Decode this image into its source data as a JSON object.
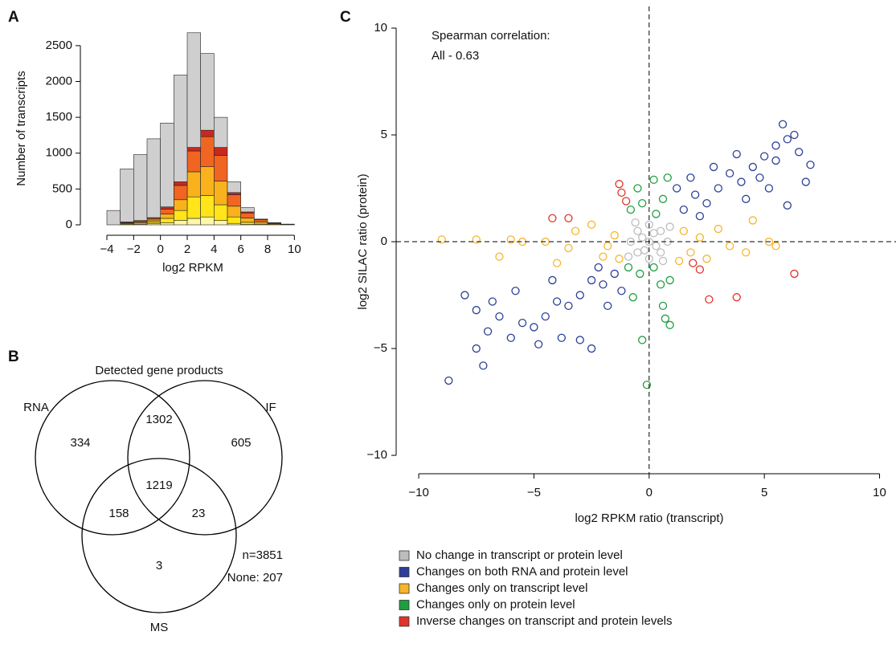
{
  "chart_data": [
    {
      "type": "histogram",
      "panel": "A",
      "xlabel": "log2 RPKM",
      "ylabel": "Number of transcripts",
      "bins": [
        -4,
        -3,
        -2,
        -1,
        0,
        1,
        2,
        3,
        4,
        5,
        6,
        7,
        8,
        9,
        10
      ],
      "series": [
        {
          "color": "#fff6a8",
          "values": [
            0,
            5,
            10,
            15,
            30,
            60,
            90,
            110,
            60,
            20,
            5,
            0,
            0,
            0
          ]
        },
        {
          "color": "#ffe51a",
          "values": [
            0,
            10,
            15,
            25,
            60,
            140,
            300,
            300,
            220,
            90,
            30,
            10,
            5,
            0
          ]
        },
        {
          "color": "#f9b21c",
          "values": [
            0,
            10,
            15,
            25,
            60,
            150,
            350,
            400,
            330,
            150,
            60,
            30,
            10,
            5
          ]
        },
        {
          "color": "#f06522",
          "values": [
            0,
            10,
            15,
            25,
            70,
            200,
            290,
            420,
            360,
            160,
            70,
            30,
            10,
            5
          ]
        },
        {
          "color": "#c8281e",
          "values": [
            0,
            5,
            5,
            10,
            30,
            50,
            50,
            90,
            110,
            30,
            15,
            10,
            5,
            0
          ]
        },
        {
          "color": "#cfcfcf",
          "values": [
            200,
            740,
            920,
            1100,
            1170,
            1490,
            1600,
            1070,
            420,
            150,
            60,
            0,
            0,
            0
          ]
        }
      ],
      "xlim": [
        -5.2,
        11
      ],
      "xticks": [
        {
          "value": -4,
          "label": "−4"
        },
        {
          "value": -2,
          "label": "−2"
        },
        0,
        2,
        4,
        6,
        8,
        10
      ],
      "ylim": [
        0,
        2700
      ],
      "yticks": [
        0,
        500,
        1000,
        1500,
        2000,
        2500
      ]
    },
    {
      "type": "venn",
      "panel": "B",
      "title": "Detected gene products",
      "sets": [
        "RNA",
        "IF",
        "MS"
      ],
      "regions": {
        "RNA": "334",
        "IF": "605",
        "MS": "3",
        "RNA_IF": "1302",
        "RNA_MS": "158",
        "IF_MS": "23",
        "all": "1219"
      },
      "notes": [
        "n=3851",
        "None: 207"
      ]
    },
    {
      "type": "scatter",
      "panel": "C",
      "xlabel": "log2 RPKM ratio (transcript)",
      "ylabel": "log2 SILAC ratio (protein)",
      "annotation": [
        "Spearman correlation:",
        "All - 0.63"
      ],
      "hline": 0,
      "vline": 0,
      "xlim": [
        -10.7,
        10.7
      ],
      "xticks": [
        {
          "value": -10,
          "label": "−10"
        },
        {
          "value": -5,
          "label": "−5"
        },
        0,
        5,
        10
      ],
      "ylim": [
        -11.2,
        11
      ],
      "yticks": [
        {
          "value": -10,
          "label": "−10"
        },
        {
          "value": -5,
          "label": "−5"
        },
        0,
        5,
        10
      ],
      "series": [
        {
          "name": "No change in transcript or protein level",
          "color": "#bdbdbd",
          "x": [
            0,
            0.5,
            -0.5,
            0.5,
            -0.5,
            0.8,
            -0.8,
            0,
            0,
            0.3,
            -0.3,
            0.9,
            -0.9,
            -0.6,
            0.6,
            0.2,
            -0.2
          ],
          "values": [
            0,
            0.5,
            0.5,
            -0.5,
            -0.5,
            0,
            0,
            0.8,
            -0.8,
            -0.2,
            0.2,
            0.7,
            -0.7,
            0.9,
            -0.9,
            0.4,
            -0.4
          ]
        },
        {
          "name": "Changes on both RNA and protein level",
          "color": "#2d3f98",
          "x": [
            1.5,
            2,
            2.5,
            3,
            1.8,
            3.5,
            4,
            4.5,
            5,
            5.5,
            6,
            6.5,
            5.8,
            6.3,
            7,
            6.8,
            4.2,
            3.8,
            2.2,
            1.2,
            5.2,
            6,
            2.8,
            4.8,
            5.5,
            -1.5,
            -2,
            -2.5,
            -3,
            -1.8,
            -3.5,
            -4,
            -4.5,
            -5,
            -5.5,
            -6,
            -6.5,
            -7,
            -7.5,
            -8.7,
            -7.2,
            -4.8,
            -3,
            -2.5,
            -6.8,
            -7.5,
            -8,
            -1.2,
            -2.2,
            -5.8,
            -3.8,
            -4.2
          ],
          "values": [
            1.5,
            2.2,
            1.8,
            2.5,
            3,
            3.2,
            2.8,
            3.5,
            4,
            4.5,
            4.8,
            4.2,
            5.5,
            5,
            3.6,
            2.8,
            2,
            4.1,
            1.2,
            2.5,
            2.5,
            1.7,
            3.5,
            3,
            3.8,
            -1.5,
            -2,
            -1.8,
            -2.5,
            -3,
            -3,
            -2.8,
            -3.5,
            -4,
            -3.8,
            -4.5,
            -3.5,
            -4.2,
            -5,
            -6.5,
            -5.8,
            -4.8,
            -4.6,
            -5,
            -2.8,
            -3.2,
            -2.5,
            -2.3,
            -1.2,
            -2.3,
            -4.5,
            -1.8
          ]
        },
        {
          "name": "Changes only on transcript level",
          "color": "#f7b52a",
          "x": [
            -9,
            -7.5,
            -6,
            -5.5,
            -4.5,
            -3.5,
            -3.2,
            -2.5,
            -2,
            -1.5,
            -1.3,
            -1.8,
            -4,
            1.5,
            1.8,
            2.2,
            2.5,
            3,
            3.5,
            4.2,
            5.2,
            5.5,
            4.5,
            1.3,
            -6.5
          ],
          "values": [
            0.1,
            0.1,
            0.1,
            0,
            0,
            -0.3,
            0.5,
            0.8,
            -0.7,
            0.3,
            -0.8,
            -0.2,
            -1,
            0.5,
            -0.5,
            0.2,
            -0.8,
            0.6,
            -0.2,
            -0.5,
            0,
            -0.2,
            1,
            -0.9,
            -0.7
          ]
        },
        {
          "name": "Changes only on protein level",
          "color": "#1f9e40",
          "x": [
            0.2,
            -0.5,
            0.6,
            -0.8,
            0.3,
            0.8,
            -0.3,
            -0.4,
            0.5,
            -0.7,
            0.2,
            0.6,
            0.7,
            0.9,
            -0.1,
            -0.3,
            0.9,
            -0.9
          ],
          "values": [
            2.9,
            2.5,
            2,
            1.5,
            1.3,
            3,
            1.8,
            -1.5,
            -2,
            -2.6,
            -1.2,
            -3,
            -3.6,
            -3.9,
            -6.7,
            -4.6,
            -1.8,
            -1.2
          ]
        },
        {
          "name": "Inverse changes on transcript and protein levels",
          "color": "#e0352a",
          "x": [
            -1.3,
            -1,
            -3.5,
            -4.2,
            1.9,
            2.2,
            2.6,
            3.8,
            6.3,
            -1.2
          ],
          "values": [
            2.7,
            1.9,
            1.1,
            1.1,
            -1,
            -1.3,
            -2.7,
            -2.6,
            -1.5,
            2.3
          ]
        }
      ]
    }
  ]
}
